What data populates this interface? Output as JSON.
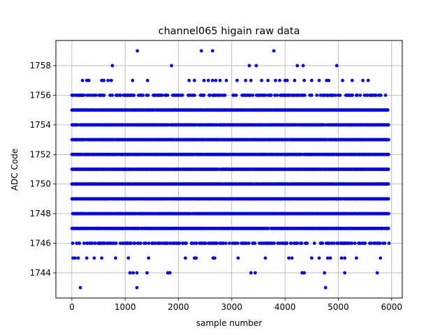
{
  "chart_data": {
    "type": "scatter",
    "title": "channel065 higain raw data",
    "xlabel": "sample number",
    "ylabel": "ADC Code",
    "xlim": [
      -300,
      6200
    ],
    "ylim": [
      1742.3,
      1759.7
    ],
    "x_ticks": [
      0,
      1000,
      2000,
      3000,
      4000,
      5000,
      6000
    ],
    "y_ticks": [
      1744,
      1746,
      1748,
      1750,
      1752,
      1754,
      1756,
      1758
    ],
    "grid": true,
    "marker_color": "#0000ff",
    "x_range": [
      0,
      5950
    ],
    "dense_levels": [
      1747,
      1748,
      1749,
      1750,
      1751,
      1752,
      1753,
      1754,
      1755
    ],
    "moderate_levels": [
      1746,
      1756
    ],
    "series": [
      {
        "level": 1757,
        "x": [
          200,
          280,
          320,
          560,
          600,
          680,
          740,
          1140,
          1420,
          2200,
          2300,
          2480,
          2560,
          2640,
          2700,
          2780,
          2900,
          3100,
          3260,
          3360,
          3560,
          3680,
          3820,
          3900,
          4000,
          4040,
          4180,
          4360,
          4500,
          4640,
          4780,
          4820,
          5080,
          5260,
          5460,
          5560
        ]
      },
      {
        "level": 1758,
        "x": [
          760,
          1870,
          3330,
          3460,
          4230,
          4340,
          4970
        ]
      },
      {
        "level": 1759,
        "x": [
          1230,
          2430,
          2640,
          3790
        ]
      },
      {
        "level": 1745,
        "x": [
          20,
          60,
          120,
          280,
          420,
          560,
          820,
          1060,
          1440,
          2130,
          2300,
          2330,
          2650,
          2680,
          3120,
          3630,
          4070,
          4130,
          4500,
          4640,
          4800,
          4850,
          5060,
          5120,
          5340,
          5790
        ]
      },
      {
        "level": 1744,
        "x": [
          1090,
          1150,
          1220,
          1410,
          1800,
          1840,
          3360,
          3440,
          4320,
          4360,
          4740,
          5120,
          5730
        ]
      },
      {
        "level": 1743,
        "x": [
          160,
          1220,
          4760
        ]
      }
    ]
  }
}
